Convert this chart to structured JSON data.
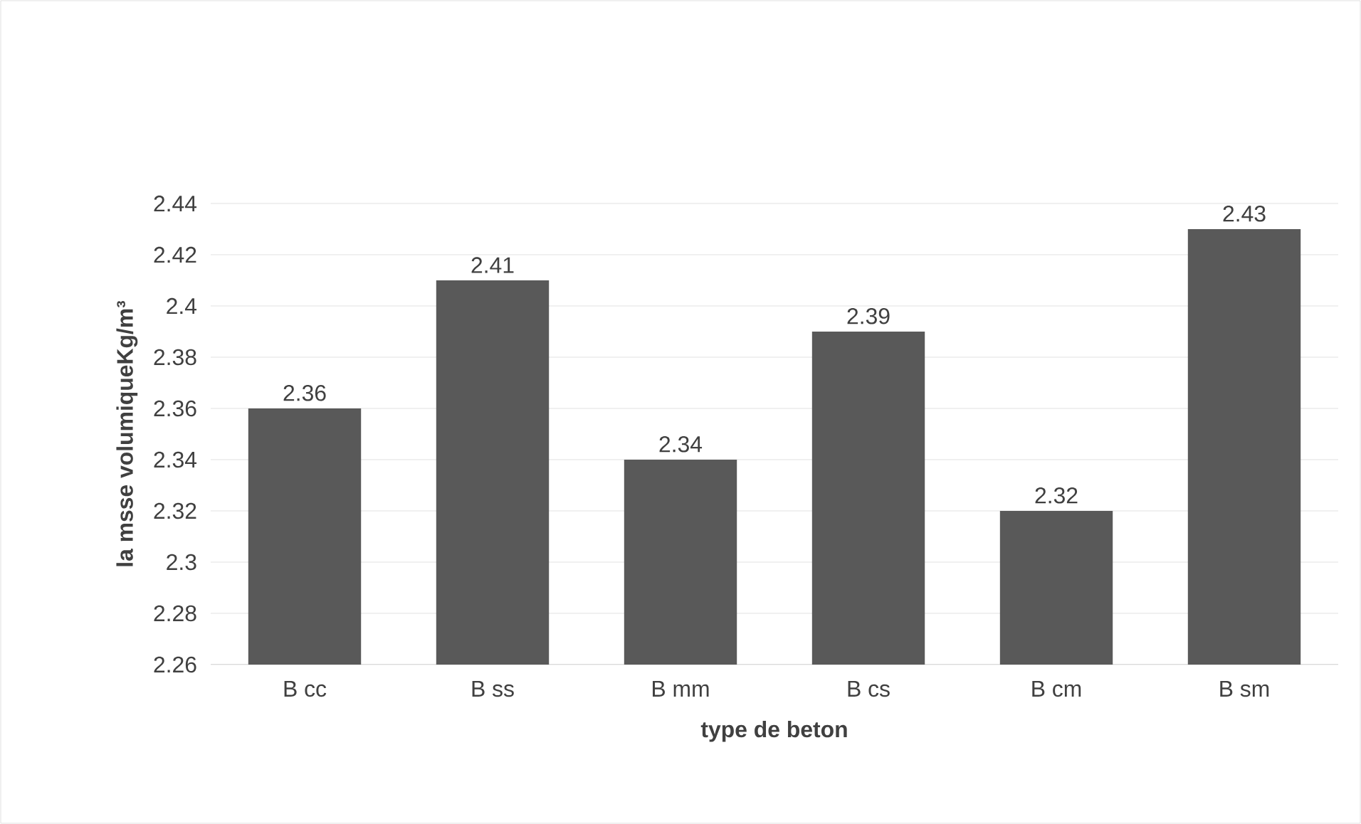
{
  "chart_data": {
    "type": "bar",
    "categories": [
      "B cc",
      "B ss",
      "B mm",
      "B cs",
      "B cm",
      "B sm"
    ],
    "values": [
      2.36,
      2.41,
      2.34,
      2.39,
      2.32,
      2.43
    ],
    "color": "#595959",
    "xlabel": "type de beton",
    "ylabel": "la msse volumiqueKg/m³",
    "ylim": [
      2.26,
      2.44
    ],
    "yticks": [
      2.26,
      2.28,
      2.3,
      2.32,
      2.34,
      2.36,
      2.38,
      2.4,
      2.42,
      2.44
    ],
    "grid": "y",
    "data_labels": true
  }
}
